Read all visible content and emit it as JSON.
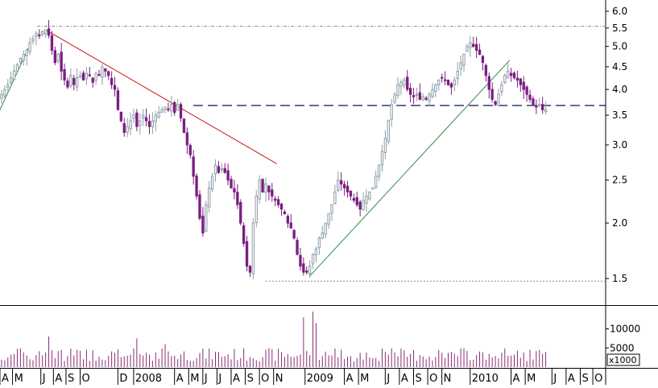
{
  "chart_data": {
    "type": "candlestick",
    "price_scale": "log",
    "ylim": [
      1.4,
      6.2
    ],
    "price_ticks": [
      6.0,
      5.5,
      5.0,
      4.5,
      4.0,
      3.5,
      3.0,
      2.5,
      2.0,
      1.5
    ],
    "price_tick_labels": [
      "6.0",
      "5.5",
      "5.0",
      "4.5",
      "4.0",
      "3.5",
      "3.0",
      "2.5",
      "2.0",
      "1.5"
    ],
    "volume_ticks": [
      10000,
      5000
    ],
    "volume_tick_labels": [
      "10000",
      "5000"
    ],
    "volume_multiplier_label": "x1000",
    "date_labels": [
      "A",
      "M",
      "J",
      "A",
      "S",
      "O",
      "D",
      "2008",
      "A",
      "M",
      "J",
      "J",
      "A",
      "S",
      "O",
      "N",
      "2009",
      "A",
      "M",
      "J",
      "A",
      "S",
      "O",
      "N",
      "2010",
      "A",
      "M",
      "J",
      "A",
      "S",
      "O"
    ],
    "date_label_weeks": [
      0.5,
      4.5,
      13.5,
      17.5,
      21.5,
      26,
      38,
      43,
      56,
      60.5,
      65,
      69.5,
      74,
      78.5,
      83,
      87.5,
      97.5,
      110,
      114.5,
      123,
      127.5,
      132,
      136.5,
      141,
      150,
      163,
      167.5,
      176,
      180.5,
      185,
      189
    ],
    "x_range_weeks": [
      0,
      190
    ],
    "weekly_close": [
      3.9,
      4.0,
      4.1,
      4.25,
      4.4,
      4.55,
      4.7,
      4.8,
      4.9,
      5.1,
      5.2,
      5.35,
      5.3,
      5.4,
      5.45,
      5.3,
      4.9,
      4.6,
      4.8,
      4.4,
      4.2,
      4.05,
      4.3,
      4.1,
      4.25,
      4.3,
      4.2,
      4.35,
      4.3,
      4.15,
      4.35,
      4.3,
      4.5,
      4.4,
      4.3,
      4.1,
      4.0,
      3.6,
      3.4,
      3.2,
      3.3,
      3.4,
      3.5,
      3.3,
      3.4,
      3.5,
      3.4,
      3.3,
      3.4,
      3.5,
      3.55,
      3.6,
      3.65,
      3.6,
      3.7,
      3.55,
      3.7,
      3.45,
      3.2,
      3.0,
      2.85,
      2.55,
      2.3,
      2.05,
      1.9,
      2.2,
      2.4,
      2.55,
      2.7,
      2.6,
      2.65,
      2.6,
      2.5,
      2.4,
      2.35,
      2.2,
      2.0,
      1.8,
      1.6,
      1.55,
      2.0,
      2.3,
      2.5,
      2.35,
      2.45,
      2.35,
      2.3,
      2.25,
      2.2,
      2.15,
      2.1,
      2.0,
      1.95,
      1.85,
      1.7,
      1.6,
      1.55,
      1.55,
      1.6,
      1.7,
      1.75,
      1.85,
      1.9,
      2.0,
      2.1,
      2.2,
      2.35,
      2.5,
      2.45,
      2.4,
      2.35,
      2.3,
      2.25,
      2.2,
      2.15,
      2.25,
      2.3,
      2.35,
      2.4,
      2.55,
      2.7,
      2.9,
      3.1,
      3.4,
      3.7,
      3.9,
      4.1,
      4.15,
      4.2,
      4.0,
      3.9,
      3.85,
      3.9,
      3.8,
      3.85,
      3.8,
      3.9,
      4.0,
      4.1,
      4.2,
      4.25,
      4.2,
      4.1,
      4.05,
      4.2,
      4.4,
      4.6,
      4.8,
      5.0,
      5.1,
      5.0,
      4.9,
      4.8,
      4.6,
      4.3,
      4.0,
      3.8,
      3.7,
      3.9,
      4.1,
      4.3,
      4.4,
      4.3,
      4.25,
      4.2,
      4.1,
      4.0,
      3.9,
      3.8,
      3.7,
      3.65,
      3.7,
      3.6,
      3.6
    ],
    "reference_lines": {
      "upper_dotted_level": 5.55,
      "lower_dotted_level": 1.48,
      "dashed_level": 3.68
    },
    "trendlines": [
      {
        "style": "red",
        "from": {
          "week": 14.5,
          "price": 5.45
        },
        "to": {
          "week": 88,
          "price": 2.72
        }
      },
      {
        "style": "green",
        "from": {
          "week": 0,
          "price": 3.6
        },
        "to": {
          "week": 9,
          "price": 4.95
        }
      },
      {
        "style": "green",
        "from": {
          "week": 98.5,
          "price": 1.52
        },
        "to": {
          "week": 162,
          "price": 4.65
        }
      }
    ],
    "colors": {
      "up": "#8e9ea8",
      "down": "#7b1f82",
      "volume": "#8a2a7a",
      "red_trendline": "#cc1111",
      "green_trendline": "#2e8b4e",
      "dashed_line": "#1a2a6b",
      "grid": "#888888"
    }
  }
}
